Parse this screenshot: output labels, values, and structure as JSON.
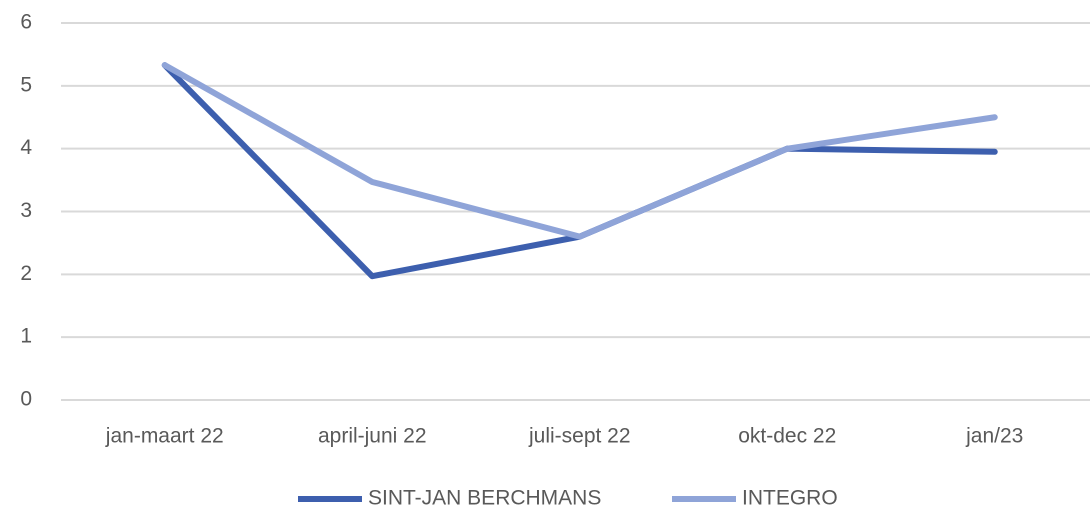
{
  "chart_data": {
    "type": "line",
    "categories": [
      "jan-maart 22",
      "april-juni 22",
      "juli-sept 22",
      "okt-dec 22",
      "jan/23"
    ],
    "series": [
      {
        "name": "SINT-JAN BERCHMANS",
        "color": "#3d5fae",
        "values": [
          5.33,
          1.97,
          2.6,
          4.0,
          3.95
        ]
      },
      {
        "name": "INTEGRO",
        "color": "#8fa4d8",
        "values": [
          5.33,
          3.47,
          2.6,
          4.0,
          4.5
        ]
      }
    ],
    "ylim": [
      0,
      6
    ],
    "yticks": [
      0,
      1,
      2,
      3,
      4,
      5,
      6
    ],
    "grid": true,
    "legend": "bottom"
  }
}
